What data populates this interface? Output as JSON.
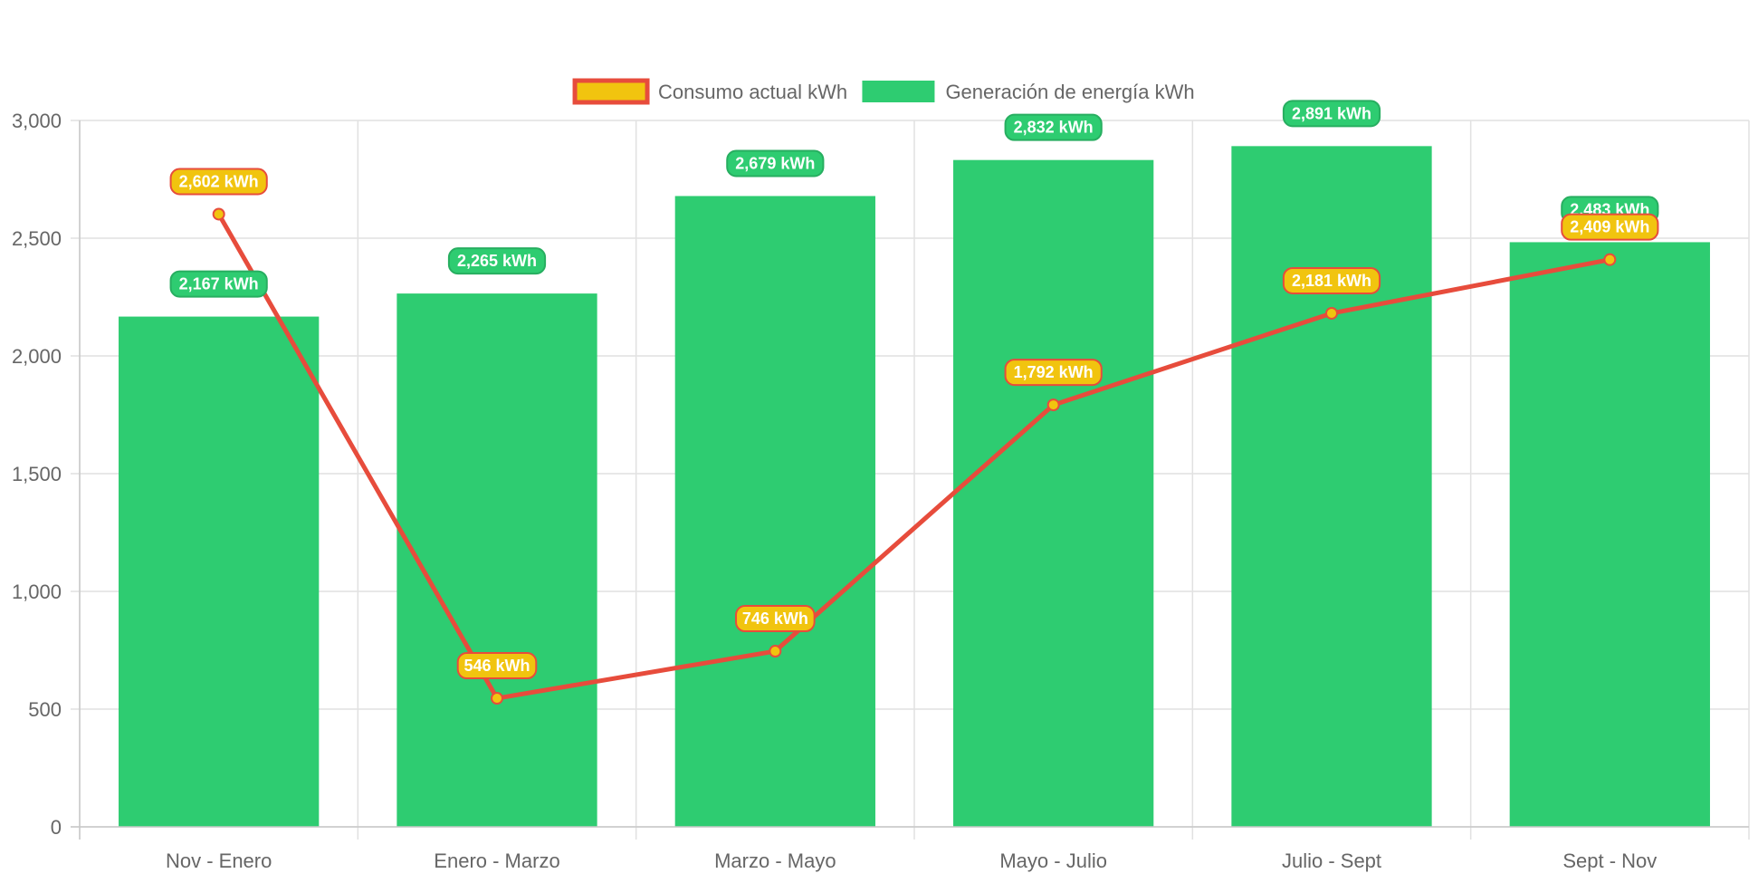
{
  "chart_data": {
    "type": "bar",
    "title": "",
    "xlabel": "",
    "ylabel": "",
    "ylim": [
      0,
      3000
    ],
    "y_ticks": [
      0,
      500,
      1000,
      1500,
      2000,
      2500,
      3000
    ],
    "y_tick_labels": [
      "0",
      "500",
      "1,000",
      "1,500",
      "2,000",
      "2,500",
      "3,000"
    ],
    "categories": [
      "Nov - Enero",
      "Enero - Marzo",
      "Marzo - Mayo",
      "Mayo - Julio",
      "Julio - Sept",
      "Sept - Nov"
    ],
    "grid": true,
    "legend_position": "top",
    "series": [
      {
        "name": "Consumo actual kWh",
        "type": "line",
        "values": [
          2602,
          546,
          746,
          1792,
          2181,
          2409
        ],
        "labels": [
          "2,602 kWh",
          "546 kWh",
          "746 kWh",
          "1,792 kWh",
          "2,181 kWh",
          "2,409 kWh"
        ],
        "line_color": "#e74c3c",
        "point_color": "#f1c40f",
        "label_bg": "#f1c40f",
        "label_border": "#e74c3c"
      },
      {
        "name": "Generación de energía kWh",
        "type": "bar",
        "values": [
          2167,
          2265,
          2679,
          2832,
          2891,
          2483
        ],
        "labels": [
          "2,167 kWh",
          "2,265 kWh",
          "2,679 kWh",
          "2,832 kWh",
          "2,891 kWh",
          "2,483 kWh"
        ],
        "color": "#2ecc71",
        "label_bg": "#2ecc71",
        "label_border": "#27ae60"
      }
    ]
  },
  "colors": {
    "grid": "#e1e1e1",
    "axis": "#c8c8c8",
    "tick_text": "#666666",
    "label_text": "#ffffff"
  }
}
